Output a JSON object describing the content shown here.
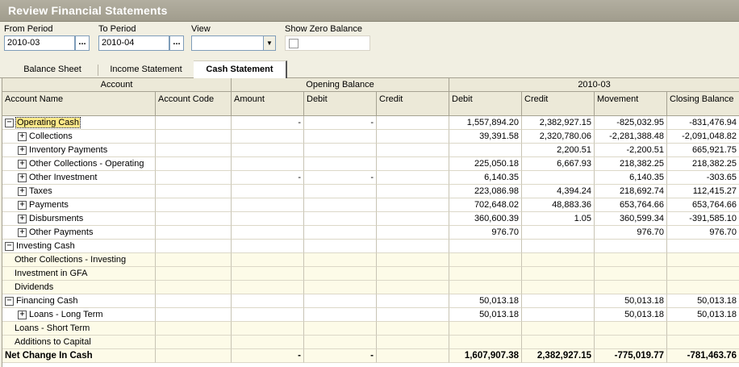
{
  "window": {
    "title": "Review Financial Statements"
  },
  "filters": {
    "from_period": {
      "label": "From Period",
      "value": "2010-03"
    },
    "to_period": {
      "label": "To Period",
      "value": "2010-04"
    },
    "view": {
      "label": "View",
      "value": ""
    },
    "show_zero": {
      "label": "Show Zero Balance",
      "checked": false
    },
    "ellipsis": "..."
  },
  "tabs": [
    {
      "label": "Balance Sheet",
      "active": false
    },
    {
      "label": "Income Statement",
      "active": false
    },
    {
      "label": "Cash Statement",
      "active": true
    }
  ],
  "grid": {
    "bands": {
      "account": "Account",
      "opening": "Opening Balance",
      "period": "2010-03"
    },
    "columns": [
      "Account Name",
      "Account Code",
      "Amount",
      "Debit",
      "Credit",
      "Debit",
      "Credit",
      "Movement",
      "Closing Balance"
    ],
    "rows": [
      {
        "name": "Operating Cash",
        "level": 0,
        "expander": "−",
        "amount": "-",
        "odebit": "-",
        "ocredit": "",
        "debit": "1,557,894.20",
        "credit": "2,382,927.15",
        "movement": "-825,032.95",
        "closing": "-831,476.94"
      },
      {
        "name": "Collections",
        "level": 1,
        "expander": "+",
        "amount": "",
        "odebit": "",
        "ocredit": "",
        "debit": "39,391.58",
        "credit": "2,320,780.06",
        "movement": "-2,281,388.48",
        "closing": "-2,091,048.82"
      },
      {
        "name": "Inventory Payments",
        "level": 1,
        "expander": "+",
        "amount": "",
        "odebit": "",
        "ocredit": "",
        "debit": "",
        "credit": "2,200.51",
        "movement": "-2,200.51",
        "closing": "665,921.75"
      },
      {
        "name": "Other Collections - Operating",
        "level": 1,
        "expander": "+",
        "amount": "",
        "odebit": "",
        "ocredit": "",
        "debit": "225,050.18",
        "credit": "6,667.93",
        "movement": "218,382.25",
        "closing": "218,382.25"
      },
      {
        "name": "Other Investment",
        "level": 1,
        "expander": "+",
        "amount": "-",
        "odebit": "-",
        "ocredit": "",
        "debit": "6,140.35",
        "credit": "",
        "movement": "6,140.35",
        "closing": "-303.65"
      },
      {
        "name": "Taxes",
        "level": 1,
        "expander": "+",
        "amount": "",
        "odebit": "",
        "ocredit": "",
        "debit": "223,086.98",
        "credit": "4,394.24",
        "movement": "218,692.74",
        "closing": "112,415.27"
      },
      {
        "name": "Payments",
        "level": 1,
        "expander": "+",
        "amount": "",
        "odebit": "",
        "ocredit": "",
        "debit": "702,648.02",
        "credit": "48,883.36",
        "movement": "653,764.66",
        "closing": "653,764.66"
      },
      {
        "name": "Disbursments",
        "level": 1,
        "expander": "+",
        "amount": "",
        "odebit": "",
        "ocredit": "",
        "debit": "360,600.39",
        "credit": "1.05",
        "movement": "360,599.34",
        "closing": "-391,585.10"
      },
      {
        "name": "Other Payments",
        "level": 1,
        "expander": "+",
        "amount": "",
        "odebit": "",
        "ocredit": "",
        "debit": "976.70",
        "credit": "",
        "movement": "976.70",
        "closing": "976.70"
      },
      {
        "name": "Investing Cash",
        "level": 0,
        "expander": "−",
        "amount": "",
        "odebit": "",
        "ocredit": "",
        "debit": "",
        "credit": "",
        "movement": "",
        "closing": ""
      },
      {
        "name": "Other Collections - Investing",
        "level": 2,
        "expander": "",
        "amount": "",
        "odebit": "",
        "ocredit": "",
        "debit": "",
        "credit": "",
        "movement": "",
        "closing": ""
      },
      {
        "name": "Investment in GFA",
        "level": 2,
        "expander": "",
        "amount": "",
        "odebit": "",
        "ocredit": "",
        "debit": "",
        "credit": "",
        "movement": "",
        "closing": ""
      },
      {
        "name": "Dividends",
        "level": 2,
        "expander": "",
        "amount": "",
        "odebit": "",
        "ocredit": "",
        "debit": "",
        "credit": "",
        "movement": "",
        "closing": ""
      },
      {
        "name": "Financing Cash",
        "level": 0,
        "expander": "−",
        "amount": "",
        "odebit": "",
        "ocredit": "",
        "debit": "50,013.18",
        "credit": "",
        "movement": "50,013.18",
        "closing": "50,013.18"
      },
      {
        "name": "Loans - Long Term",
        "level": 1,
        "expander": "+",
        "amount": "",
        "odebit": "",
        "ocredit": "",
        "debit": "50,013.18",
        "credit": "",
        "movement": "50,013.18",
        "closing": "50,013.18"
      },
      {
        "name": "Loans - Short Term",
        "level": 2,
        "expander": "",
        "amount": "",
        "odebit": "",
        "ocredit": "",
        "debit": "",
        "credit": "",
        "movement": "",
        "closing": ""
      },
      {
        "name": "Additions to Capital",
        "level": 2,
        "expander": "",
        "amount": "",
        "odebit": "",
        "ocredit": "",
        "debit": "",
        "credit": "",
        "movement": "",
        "closing": ""
      }
    ],
    "total": {
      "name": "Net Change In Cash",
      "amount": "-",
      "odebit": "-",
      "ocredit": "",
      "debit": "1,607,907.38",
      "credit": "2,382,927.15",
      "movement": "-775,019.77",
      "closing": "-781,463.76"
    }
  }
}
